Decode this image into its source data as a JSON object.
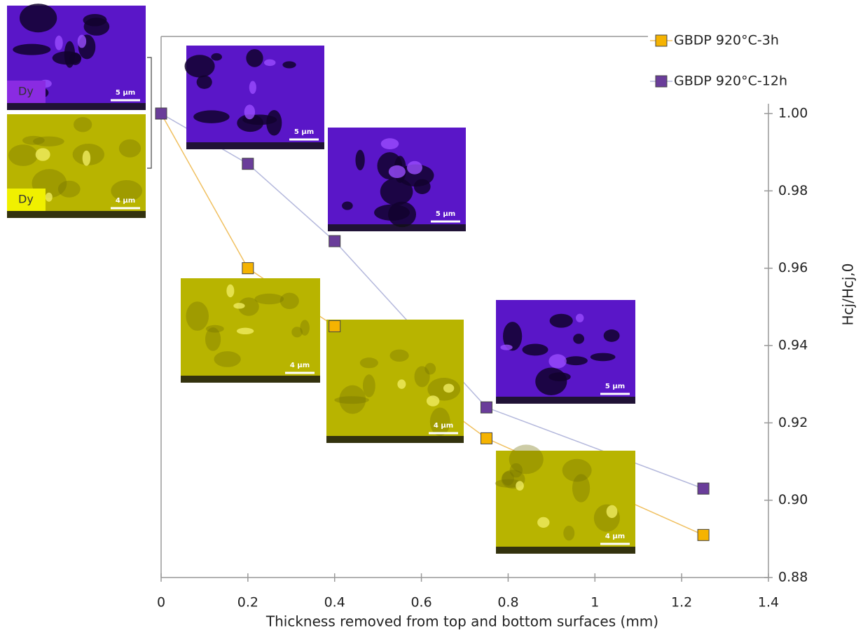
{
  "chart_data": {
    "type": "line",
    "x": [
      0,
      0.2,
      0.4,
      0.75,
      1.25
    ],
    "series": [
      {
        "name": "GBDP 920°C-3h",
        "color": "#f5b301",
        "line_color": "#f0c060",
        "values": [
          1.0,
          0.96,
          0.945,
          0.916,
          0.891
        ]
      },
      {
        "name": "GBDP 920°C-12h",
        "color": "#6a3d9a",
        "line_color": "#b4b8dc",
        "values": [
          1.0,
          0.987,
          0.967,
          0.924,
          0.903
        ]
      }
    ],
    "xlim": [
      0,
      1.4
    ],
    "xticks": [
      0,
      0.2,
      0.4,
      0.6,
      0.8,
      1,
      1.2,
      1.4
    ],
    "ylim": [
      0.88,
      1.0
    ],
    "yticks": [
      0.88,
      {
        "value": 0.9,
        "label": "0.90"
      },
      0.92,
      0.94,
      0.96,
      0.98,
      {
        "value": 1.0,
        "label": "1.00"
      }
    ],
    "xlabel": "Thickness removed from top and bottom surfaces (mm)",
    "ylabel": "Hcj/Hcj,0",
    "legend": "top-right",
    "insets": [
      {
        "tag": "Dy",
        "scale": "5 µm"
      },
      {
        "tag": "Dy",
        "scale": "4 µm"
      },
      {
        "scale": "5 µm"
      },
      {
        "scale": "5 µm"
      },
      {
        "scale": "4 µm"
      },
      {
        "scale": "4 µm"
      },
      {
        "scale": "5 µm"
      },
      {
        "scale": "4 µm"
      }
    ]
  }
}
